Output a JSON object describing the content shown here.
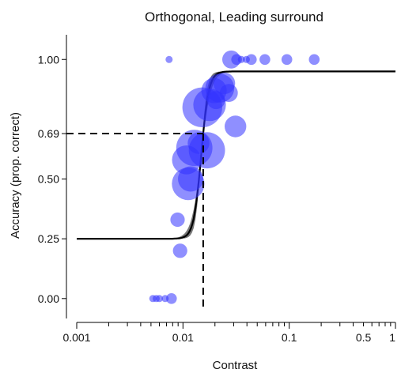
{
  "chart_data": {
    "type": "scatter",
    "title": "Orthogonal, Leading surround",
    "xlabel": "Contrast",
    "ylabel": "Accuracy (prop. correct)",
    "x_scale": "log",
    "xlim": [
      0.001,
      1
    ],
    "ylim": [
      -0.08,
      1.1
    ],
    "x_ticks": [
      {
        "value": 0.001,
        "label": "0.001"
      },
      {
        "value": 0.01,
        "label": "0.01"
      },
      {
        "value": 0.1,
        "label": "0.1"
      },
      {
        "value": 0.5,
        "label": "0.5"
      },
      {
        "value": 1,
        "label": "1"
      }
    ],
    "y_ticks": [
      {
        "value": 1.0,
        "label": "1.00"
      },
      {
        "value": 0.69,
        "label": "0.69"
      },
      {
        "value": 0.5,
        "label": "0.50"
      },
      {
        "value": 0.25,
        "label": "0.25"
      },
      {
        "value": 0.0,
        "label": "0.00"
      }
    ],
    "fit_curve": {
      "lower_asymptote": 0.25,
      "upper_asymptote": 0.95,
      "threshold_contrast": 0.0155,
      "threshold_accuracy": 0.69,
      "color": "#000000"
    },
    "confidence_band_color": "#777777",
    "marker_color": "#3333ff",
    "points": [
      {
        "x": 0.0052,
        "y": 0.0,
        "n": 1
      },
      {
        "x": 0.0056,
        "y": 0.0,
        "n": 1
      },
      {
        "x": 0.006,
        "y": 0.0,
        "n": 1
      },
      {
        "x": 0.0068,
        "y": 0.0,
        "n": 1
      },
      {
        "x": 0.0078,
        "y": 0.0,
        "n": 2
      },
      {
        "x": 0.0074,
        "y": 1.0,
        "n": 1
      },
      {
        "x": 0.0094,
        "y": 0.2,
        "n": 3
      },
      {
        "x": 0.0089,
        "y": 0.33,
        "n": 3
      },
      {
        "x": 0.0112,
        "y": 0.48,
        "n": 8
      },
      {
        "x": 0.0118,
        "y": 0.5,
        "n": 6
      },
      {
        "x": 0.0108,
        "y": 0.58,
        "n": 7
      },
      {
        "x": 0.0128,
        "y": 0.63,
        "n": 9
      },
      {
        "x": 0.014,
        "y": 0.65,
        "n": 5
      },
      {
        "x": 0.0168,
        "y": 0.62,
        "n": 9
      },
      {
        "x": 0.0152,
        "y": 0.8,
        "n": 10
      },
      {
        "x": 0.0178,
        "y": 0.81,
        "n": 8
      },
      {
        "x": 0.0196,
        "y": 0.87,
        "n": 6
      },
      {
        "x": 0.0222,
        "y": 0.88,
        "n": 7
      },
      {
        "x": 0.0245,
        "y": 0.9,
        "n": 5
      },
      {
        "x": 0.0205,
        "y": 0.83,
        "n": 4
      },
      {
        "x": 0.027,
        "y": 0.86,
        "n": 4
      },
      {
        "x": 0.0312,
        "y": 0.72,
        "n": 5
      },
      {
        "x": 0.0285,
        "y": 1.0,
        "n": 4
      },
      {
        "x": 0.032,
        "y": 1.0,
        "n": 2
      },
      {
        "x": 0.0355,
        "y": 1.0,
        "n": 1
      },
      {
        "x": 0.0395,
        "y": 1.0,
        "n": 1
      },
      {
        "x": 0.044,
        "y": 1.0,
        "n": 2
      },
      {
        "x": 0.059,
        "y": 1.0,
        "n": 2
      },
      {
        "x": 0.095,
        "y": 1.0,
        "n": 2
      },
      {
        "x": 0.172,
        "y": 1.0,
        "n": 2
      }
    ]
  }
}
